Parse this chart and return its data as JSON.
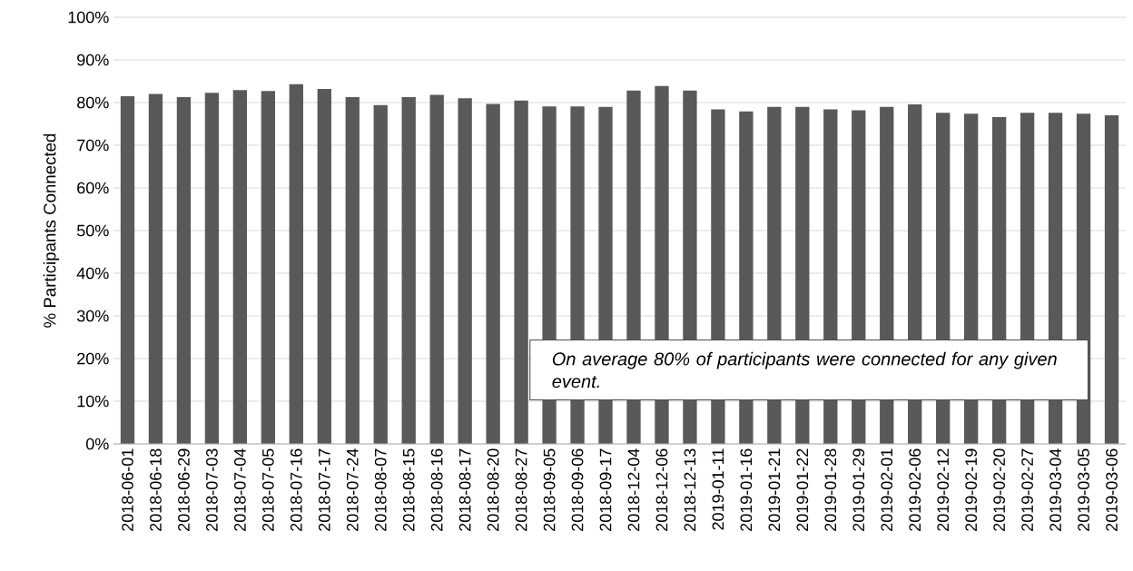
{
  "chart_data": {
    "type": "bar",
    "ylabel": "% Participants Connected",
    "categories": [
      "2018-06-01",
      "2018-06-18",
      "2018-06-29",
      "2018-07-03",
      "2018-07-04",
      "2018-07-05",
      "2018-07-16",
      "2018-07-17",
      "2018-07-24",
      "2018-08-07",
      "2018-08-15",
      "2018-08-16",
      "2018-08-17",
      "2018-08-20",
      "2018-08-27",
      "2018-09-05",
      "2018-09-06",
      "2018-09-17",
      "2018-12-04",
      "2018-12-06",
      "2018-12-13",
      "2019-01-11",
      "2019-01-16",
      "2019-01-21",
      "2019-01-22",
      "2019-01-28",
      "2019-01-29",
      "2019-02-01",
      "2019-02-06",
      "2019-02-12",
      "2019-02-19",
      "2019-02-20",
      "2019-02-27",
      "2019-03-04",
      "2019-03-05",
      "2019-03-06"
    ],
    "values": [
      81.5,
      82.0,
      81.3,
      82.3,
      82.9,
      82.7,
      84.3,
      83.2,
      81.3,
      79.4,
      81.3,
      81.8,
      81.0,
      79.7,
      80.5,
      79.1,
      79.1,
      79.0,
      82.8,
      83.9,
      82.8,
      78.4,
      77.9,
      79.0,
      79.0,
      78.4,
      78.2,
      79.0,
      79.6,
      77.6,
      77.4,
      76.6,
      77.6,
      77.6,
      77.4,
      77.0
    ],
    "color": "#595959",
    "ylim": [
      0,
      100
    ],
    "yticks": [
      {
        "value": 0,
        "label": "0%"
      },
      {
        "value": 10,
        "label": "10%"
      },
      {
        "value": 20,
        "label": "20%"
      },
      {
        "value": 30,
        "label": "30%"
      },
      {
        "value": 40,
        "label": "40%"
      },
      {
        "value": 50,
        "label": "50%"
      },
      {
        "value": 60,
        "label": "60%"
      },
      {
        "value": 70,
        "label": "70%"
      },
      {
        "value": 80,
        "label": "80%"
      },
      {
        "value": 90,
        "label": "90%"
      },
      {
        "value": 100,
        "label": "100%"
      }
    ],
    "grid": "y",
    "annotations": [
      "*On average 80% of participants were connected for any given event.*"
    ]
  }
}
